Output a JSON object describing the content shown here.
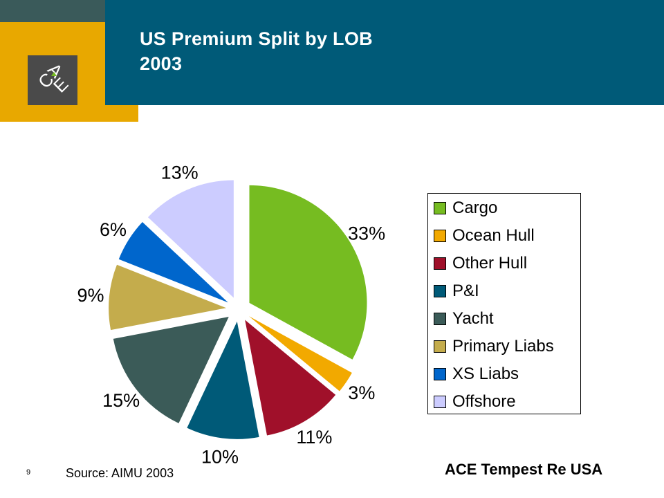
{
  "slide": {
    "title_line1": "US Premium Split by LOB",
    "title_line2": "2003",
    "source": "Source: AIMU 2003",
    "page_number": "9",
    "company": "ACE Tempest Re USA",
    "logo_text": "ACE"
  },
  "colors": {
    "header": "#005a78",
    "header_dark": "#3a5a5a",
    "gold": "#e8a800",
    "logo_bg": "#4a4a4a"
  },
  "chart_data": {
    "type": "pie",
    "exploded": true,
    "legend_placement": "right",
    "categories": [
      "Cargo",
      "Ocean Hull",
      "Other Hull",
      "P&I",
      "Yacht",
      "Primary Liabs",
      "XS Liabs",
      "Offshore"
    ],
    "values": [
      33,
      3,
      11,
      10,
      15,
      9,
      6,
      13
    ],
    "labels": [
      "33%",
      "3%",
      "11%",
      "10%",
      "15%",
      "9%",
      "6%",
      "13%"
    ],
    "colors": [
      "#76bc21",
      "#f2a900",
      "#a0102a",
      "#005a78",
      "#3b5b58",
      "#c4ac4c",
      "#0066cc",
      "#ccccff"
    ]
  }
}
